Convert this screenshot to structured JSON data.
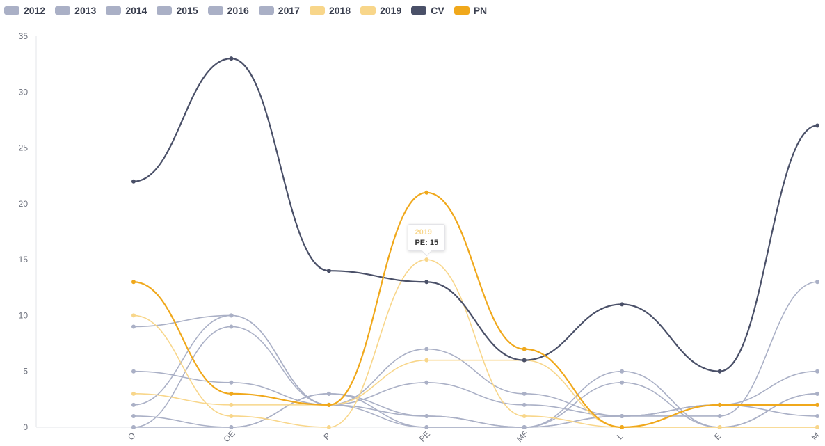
{
  "chart_data": {
    "type": "line",
    "categories": [
      "O",
      "OE",
      "P",
      "PE",
      "MF",
      "L",
      "E",
      "M"
    ],
    "ylim": [
      0,
      35
    ],
    "yticks": [
      0,
      5,
      10,
      15,
      20,
      25,
      30,
      35
    ],
    "grid": false,
    "legend_position": "top-left",
    "series": [
      {
        "name": "2012",
        "color": "#aab0c6",
        "values": [
          9,
          10,
          2,
          1,
          0,
          1,
          1,
          13
        ]
      },
      {
        "name": "2013",
        "color": "#aab0c6",
        "values": [
          5,
          4,
          2,
          7,
          3,
          1,
          2,
          5
        ]
      },
      {
        "name": "2014",
        "color": "#aab0c6",
        "values": [
          2,
          10,
          2,
          0,
          0,
          4,
          0,
          3
        ]
      },
      {
        "name": "2015",
        "color": "#aab0c6",
        "values": [
          1,
          0,
          3,
          1,
          0,
          5,
          0,
          3
        ]
      },
      {
        "name": "2016",
        "color": "#aab0c6",
        "values": [
          0,
          9,
          2,
          4,
          2,
          1,
          2,
          1
        ]
      },
      {
        "name": "2017",
        "color": "#aab0c6",
        "values": [
          0,
          0,
          3,
          0,
          0,
          1,
          2,
          2
        ]
      },
      {
        "name": "2018",
        "color": "#f8d68a",
        "values": [
          3,
          2,
          2,
          6,
          6,
          0,
          0,
          0
        ]
      },
      {
        "name": "2019",
        "color": "#f8d68a",
        "values": [
          10,
          1,
          0,
          15,
          1,
          0,
          0,
          0
        ]
      },
      {
        "name": "CV",
        "color": "#4a5068",
        "values": [
          22,
          33,
          14,
          13,
          6,
          11,
          5,
          27
        ]
      },
      {
        "name": "PN",
        "color": "#f0a81b",
        "values": [
          13,
          3,
          2,
          21,
          7,
          0,
          2,
          2
        ]
      }
    ],
    "tooltip": {
      "series": "2019",
      "text": "PE: 15",
      "category": "PE",
      "value": 15
    }
  }
}
